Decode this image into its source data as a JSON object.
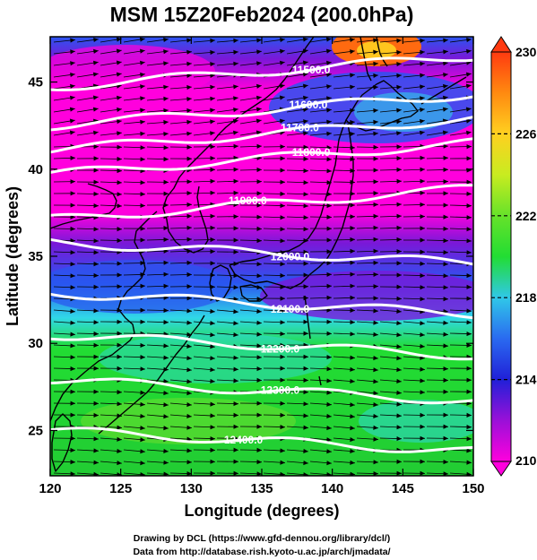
{
  "title": "MSM 15Z20Feb2024 (200.0hPa)",
  "xlabel": "Longitude (degrees)",
  "ylabel": "Latitude  (degrees)",
  "credits": [
    "Drawing by DCL (https://www.gfd-dennou.org/library/dcl/)",
    "Data from http://database.rish.kyoto-u.ac.jp/arch/jmadata/"
  ],
  "map": {
    "lon_range": [
      120,
      150
    ],
    "lat_range": [
      22.4,
      47.6
    ],
    "lon_ticks": [
      120,
      125,
      130,
      135,
      140,
      145,
      150
    ],
    "lat_ticks": [
      25,
      30,
      35,
      40,
      45
    ],
    "fill_colors": {
      "magenta": "#ff00dd",
      "purple": "#7a18d8",
      "blue": "#2a55f0",
      "cyan": "#30d8e8",
      "green": "#22dd33",
      "yellow_green": "#9be62a",
      "orange": "#ff6a10"
    },
    "contour_color": "#ffffff",
    "coastline_color": "#000000",
    "wind_arrow_color": "#000000",
    "contours": [
      {
        "label": "11500.0",
        "lat": 45.6
      },
      {
        "label": "11600.0",
        "lat": 43.4
      },
      {
        "label": "11700.0",
        "lat": 42.0
      },
      {
        "label": "11800.0",
        "lat": 40.6
      },
      {
        "label": "11900.0",
        "lat": 38.0
      },
      {
        "label": "12000.0",
        "lat": 35.2
      },
      {
        "label": "12100.0",
        "lat": 32.3
      },
      {
        "label": "12200.0",
        "lat": 29.9
      },
      {
        "label": "12300.0",
        "lat": 27.3
      },
      {
        "label": "12400.0",
        "lat": 24.4
      }
    ]
  },
  "colorbar": {
    "ticks": [
      "230",
      "226",
      "222",
      "218",
      "214",
      "210"
    ],
    "range": [
      210,
      230
    ],
    "colors": [
      "#ff00dd",
      "#7a18d8",
      "#2020d8",
      "#2a6af0",
      "#30c8e8",
      "#22dd33",
      "#9be62a",
      "#ffe020",
      "#ff8a10",
      "#ff3a10"
    ]
  }
}
